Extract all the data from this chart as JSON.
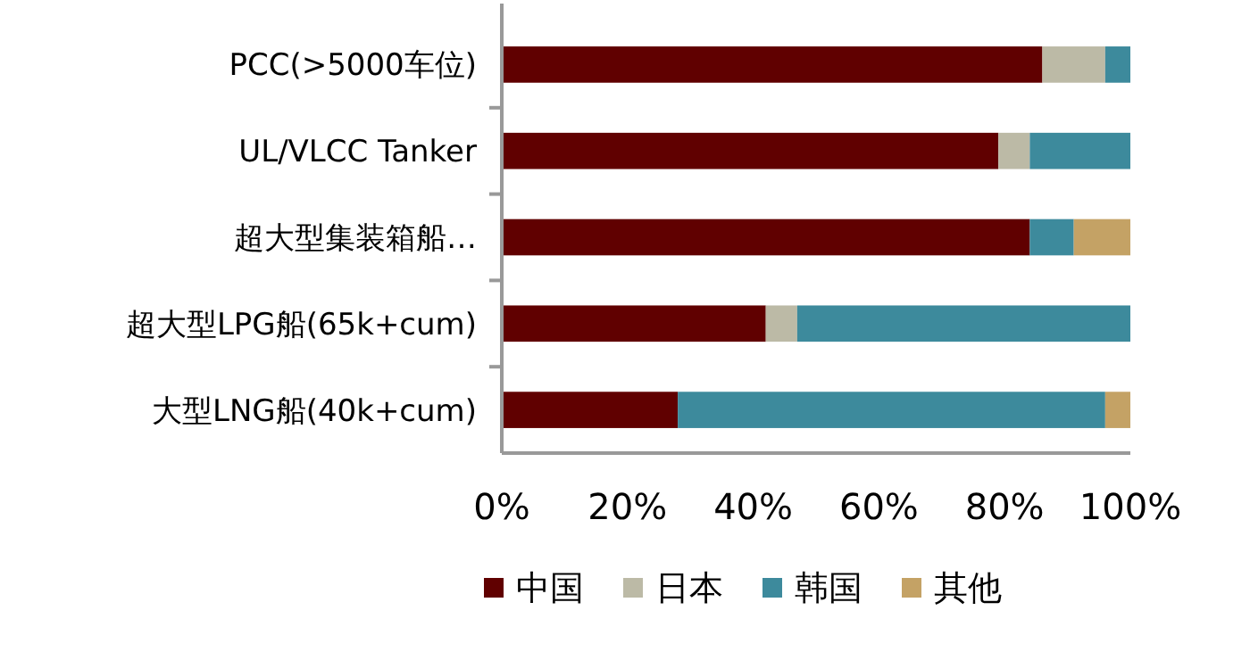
{
  "chart_data": {
    "type": "bar",
    "orientation": "horizontal",
    "stacked": true,
    "categories": [
      "PCC(>5000车位)",
      "UL/VLCC Tanker",
      "超大型集装箱船…",
      "超大型LPG船(65k+cum)",
      "大型LNG船(40k+cum)"
    ],
    "series": [
      {
        "name": "中国",
        "color": "#600000",
        "values": [
          86,
          79,
          84,
          42,
          28
        ]
      },
      {
        "name": "日本",
        "color": "#bcbaa6",
        "values": [
          10,
          5,
          0,
          5,
          0
        ]
      },
      {
        "name": "韩国",
        "color": "#3d8a9c",
        "values": [
          4,
          16,
          7,
          53,
          68
        ]
      },
      {
        "name": "其他",
        "color": "#c4a265",
        "values": [
          0,
          0,
          9,
          0,
          4
        ]
      }
    ],
    "xlim": [
      0,
      100
    ],
    "xticks": [
      {
        "value": 0,
        "label": "0%"
      },
      {
        "value": 20,
        "label": "20%"
      },
      {
        "value": 40,
        "label": "40%"
      },
      {
        "value": 60,
        "label": "60%"
      },
      {
        "value": 80,
        "label": "80%"
      },
      {
        "value": 100,
        "label": "100%"
      }
    ],
    "legend": "bottom"
  }
}
